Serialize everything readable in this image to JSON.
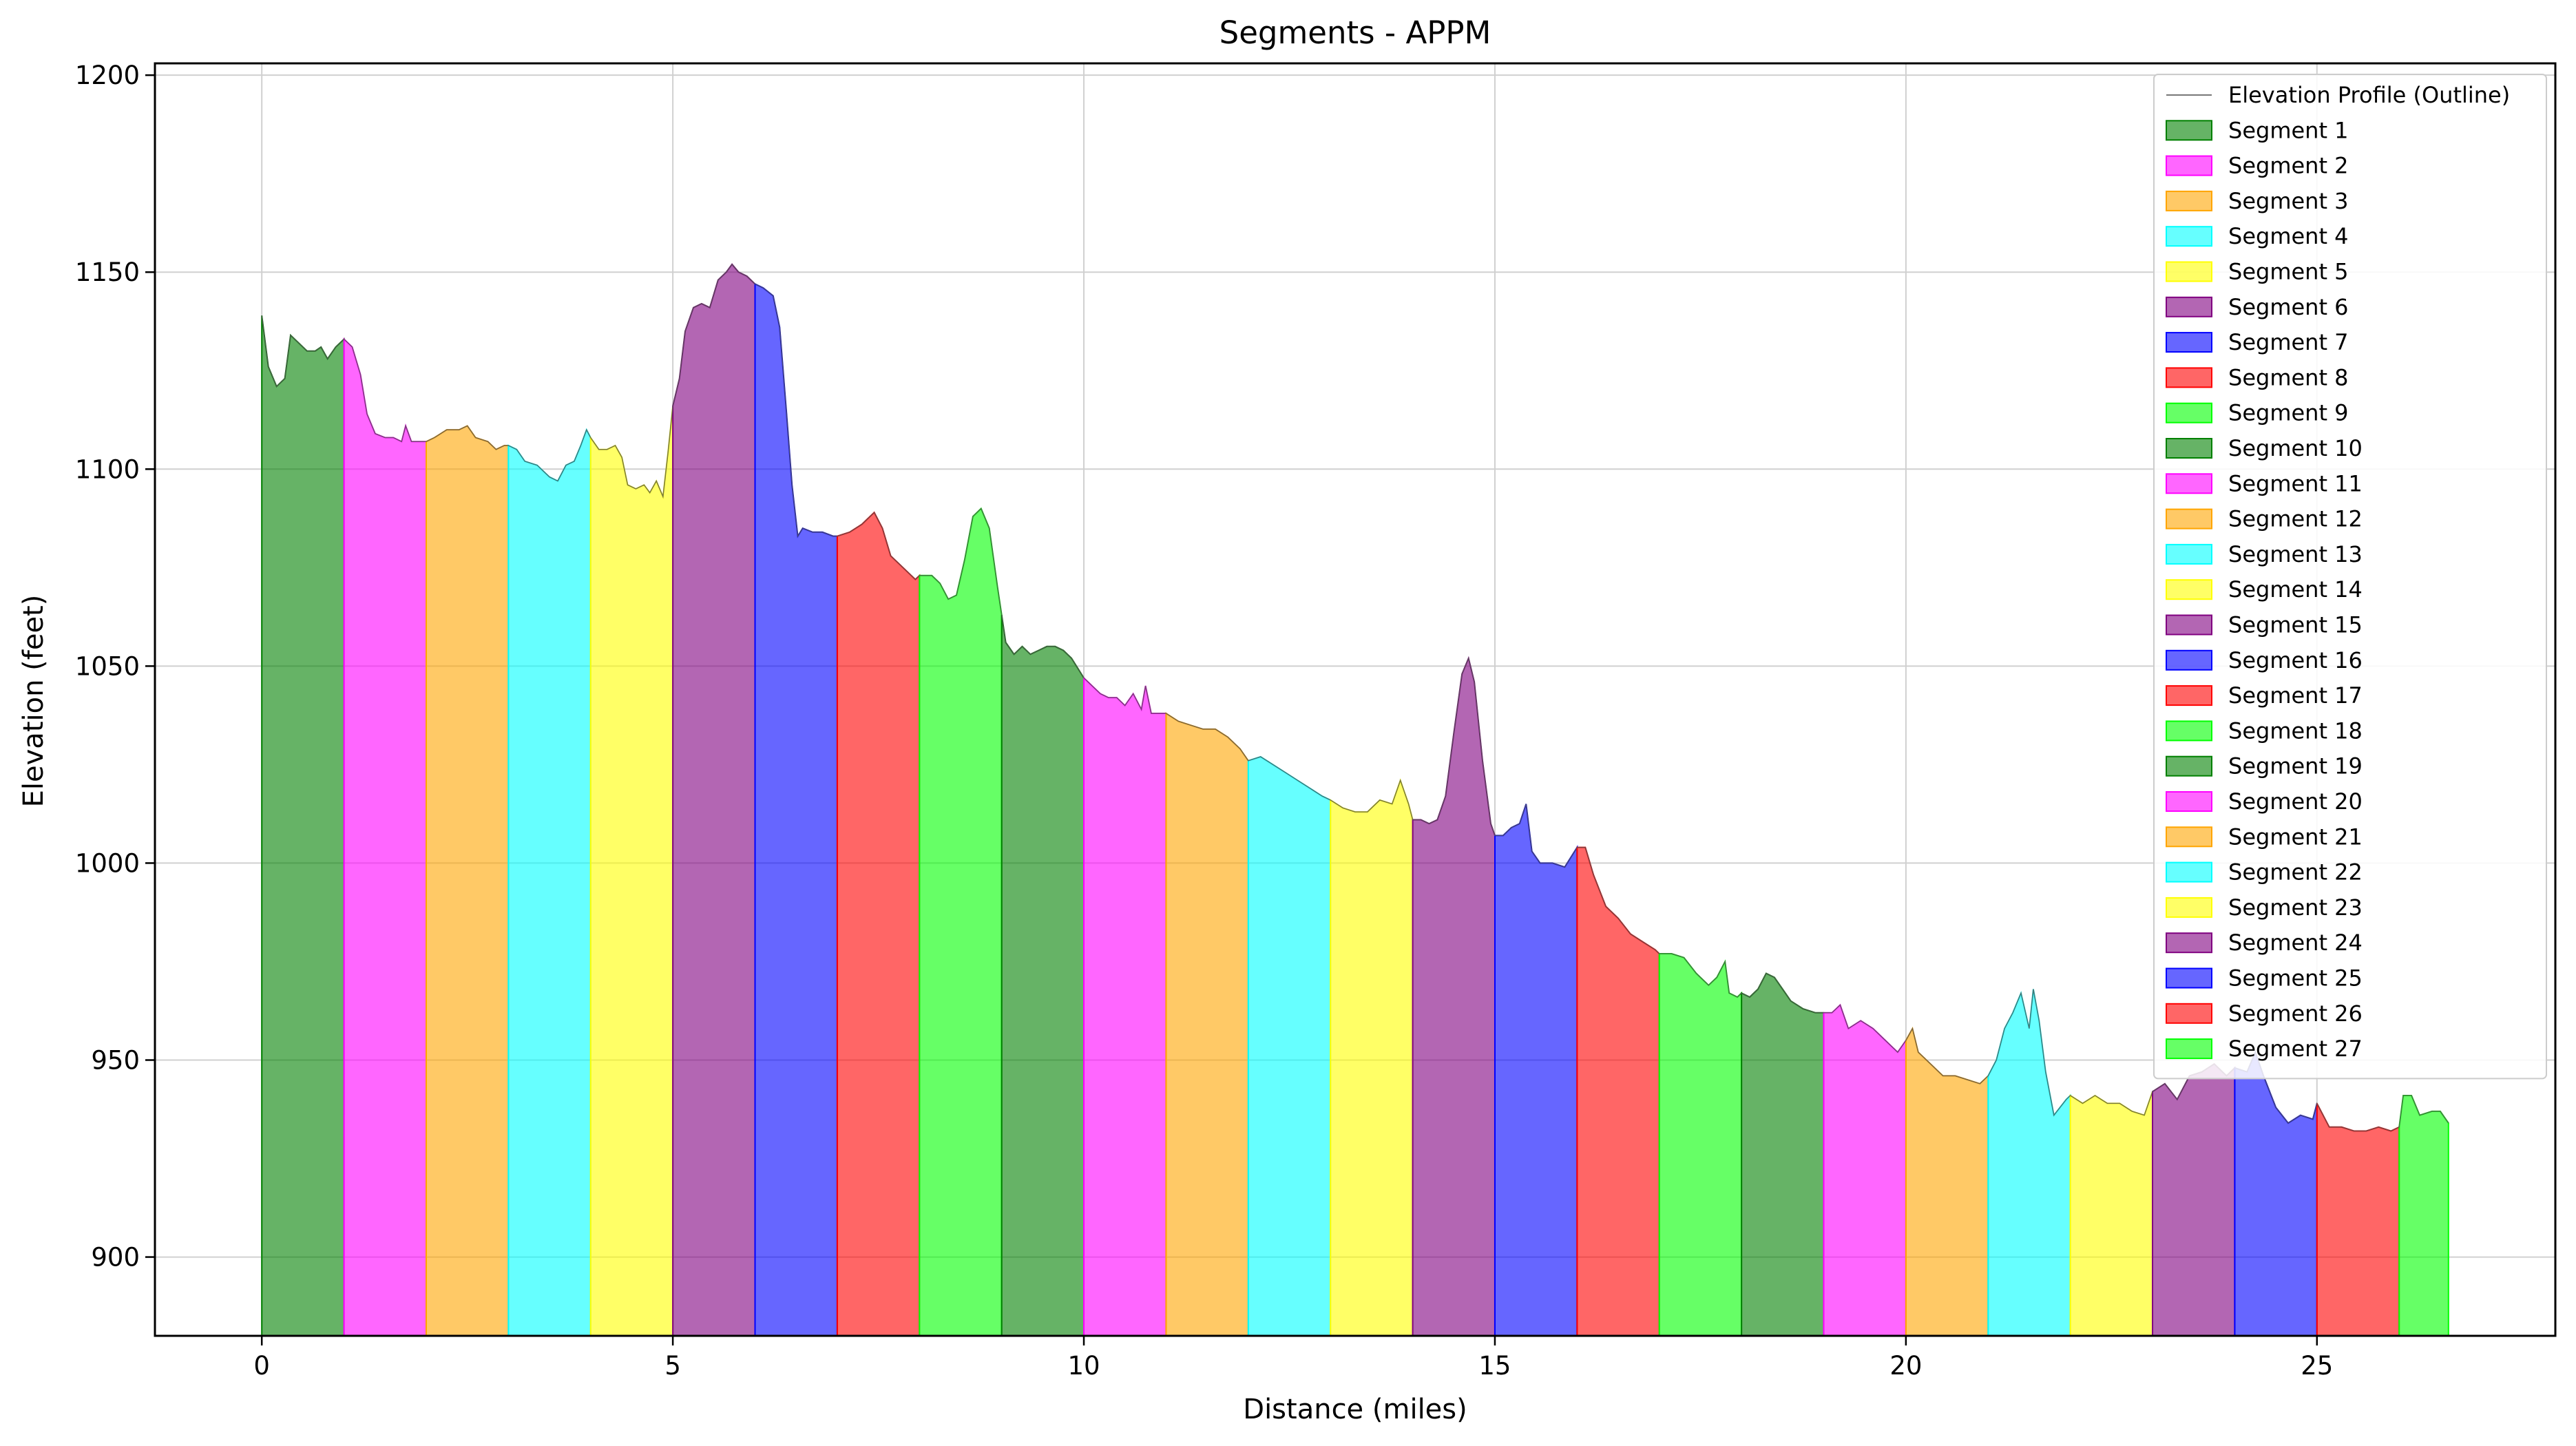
{
  "chart_data": {
    "type": "area",
    "title": "Segments - APPM",
    "xlabel": "Distance (miles)",
    "ylabel": "Elevation (feet)",
    "xlim": [
      -1.3,
      27.9
    ],
    "ylim": [
      880,
      1203
    ],
    "xticks": [
      0,
      5,
      10,
      15,
      20,
      25
    ],
    "yticks": [
      900,
      950,
      1000,
      1050,
      1100,
      1150,
      1200
    ],
    "grid": true,
    "legend_position": "top-right",
    "outline_label": "Elevation Profile (Outline)",
    "profile": [
      [
        0.0,
        1139
      ],
      [
        0.08,
        1126
      ],
      [
        0.18,
        1121
      ],
      [
        0.28,
        1123
      ],
      [
        0.35,
        1134
      ],
      [
        0.45,
        1132
      ],
      [
        0.55,
        1130
      ],
      [
        0.65,
        1130
      ],
      [
        0.72,
        1131
      ],
      [
        0.8,
        1128
      ],
      [
        0.9,
        1131
      ],
      [
        1.0,
        1133
      ],
      [
        1.1,
        1131
      ],
      [
        1.2,
        1124
      ],
      [
        1.28,
        1114
      ],
      [
        1.38,
        1109
      ],
      [
        1.5,
        1108
      ],
      [
        1.6,
        1108
      ],
      [
        1.7,
        1107
      ],
      [
        1.75,
        1111
      ],
      [
        1.82,
        1107
      ],
      [
        1.92,
        1107
      ],
      [
        2.0,
        1107
      ],
      [
        2.1,
        1108
      ],
      [
        2.25,
        1110
      ],
      [
        2.4,
        1110
      ],
      [
        2.5,
        1111
      ],
      [
        2.6,
        1108
      ],
      [
        2.75,
        1107
      ],
      [
        2.85,
        1105
      ],
      [
        2.95,
        1106
      ],
      [
        3.0,
        1106
      ],
      [
        3.1,
        1105
      ],
      [
        3.2,
        1102
      ],
      [
        3.35,
        1101
      ],
      [
        3.5,
        1098
      ],
      [
        3.6,
        1097
      ],
      [
        3.7,
        1101
      ],
      [
        3.8,
        1102
      ],
      [
        3.88,
        1106
      ],
      [
        3.95,
        1110
      ],
      [
        4.0,
        1108
      ],
      [
        4.1,
        1105
      ],
      [
        4.2,
        1105
      ],
      [
        4.3,
        1106
      ],
      [
        4.38,
        1103
      ],
      [
        4.45,
        1096
      ],
      [
        4.55,
        1095
      ],
      [
        4.65,
        1096
      ],
      [
        4.72,
        1094
      ],
      [
        4.8,
        1097
      ],
      [
        4.88,
        1093
      ],
      [
        4.94,
        1104
      ],
      [
        5.0,
        1116
      ],
      [
        5.08,
        1123
      ],
      [
        5.15,
        1135
      ],
      [
        5.25,
        1141
      ],
      [
        5.35,
        1142
      ],
      [
        5.45,
        1141
      ],
      [
        5.55,
        1148
      ],
      [
        5.65,
        1150
      ],
      [
        5.72,
        1152
      ],
      [
        5.8,
        1150
      ],
      [
        5.9,
        1149
      ],
      [
        6.0,
        1147
      ],
      [
        6.1,
        1146
      ],
      [
        6.22,
        1144
      ],
      [
        6.3,
        1136
      ],
      [
        6.38,
        1115
      ],
      [
        6.45,
        1096
      ],
      [
        6.52,
        1083
      ],
      [
        6.58,
        1085
      ],
      [
        6.7,
        1084
      ],
      [
        6.82,
        1084
      ],
      [
        6.95,
        1083
      ],
      [
        7.0,
        1083
      ],
      [
        7.15,
        1084
      ],
      [
        7.3,
        1086
      ],
      [
        7.45,
        1089
      ],
      [
        7.55,
        1085
      ],
      [
        7.65,
        1078
      ],
      [
        7.8,
        1075
      ],
      [
        7.95,
        1072
      ],
      [
        8.0,
        1073
      ],
      [
        8.15,
        1073
      ],
      [
        8.25,
        1071
      ],
      [
        8.35,
        1067
      ],
      [
        8.45,
        1068
      ],
      [
        8.55,
        1077
      ],
      [
        8.65,
        1088
      ],
      [
        8.75,
        1090
      ],
      [
        8.85,
        1085
      ],
      [
        8.95,
        1070
      ],
      [
        9.05,
        1056
      ],
      [
        9.15,
        1053
      ],
      [
        9.25,
        1055
      ],
      [
        9.35,
        1053
      ],
      [
        9.45,
        1054
      ],
      [
        9.55,
        1055
      ],
      [
        9.65,
        1055
      ],
      [
        9.75,
        1054
      ],
      [
        9.85,
        1052
      ],
      [
        10.0,
        1047
      ],
      [
        10.1,
        1045
      ],
      [
        10.2,
        1043
      ],
      [
        10.3,
        1042
      ],
      [
        10.4,
        1042
      ],
      [
        10.5,
        1040
      ],
      [
        10.6,
        1043
      ],
      [
        10.7,
        1039
      ],
      [
        10.75,
        1045
      ],
      [
        10.82,
        1038
      ],
      [
        10.92,
        1038
      ],
      [
        11.0,
        1038
      ],
      [
        11.15,
        1036
      ],
      [
        11.3,
        1035
      ],
      [
        11.45,
        1034
      ],
      [
        11.6,
        1034
      ],
      [
        11.75,
        1032
      ],
      [
        11.9,
        1029
      ],
      [
        12.0,
        1026
      ],
      [
        12.15,
        1027
      ],
      [
        12.3,
        1025
      ],
      [
        12.45,
        1023
      ],
      [
        12.6,
        1021
      ],
      [
        12.75,
        1019
      ],
      [
        12.9,
        1017
      ],
      [
        13.0,
        1016
      ],
      [
        13.15,
        1014
      ],
      [
        13.3,
        1013
      ],
      [
        13.45,
        1013
      ],
      [
        13.6,
        1016
      ],
      [
        13.75,
        1015
      ],
      [
        13.85,
        1021
      ],
      [
        13.95,
        1015
      ],
      [
        14.0,
        1011
      ],
      [
        14.1,
        1011
      ],
      [
        14.2,
        1010
      ],
      [
        14.3,
        1011
      ],
      [
        14.4,
        1017
      ],
      [
        14.5,
        1033
      ],
      [
        14.6,
        1048
      ],
      [
        14.68,
        1052
      ],
      [
        14.75,
        1046
      ],
      [
        14.85,
        1026
      ],
      [
        14.95,
        1010
      ],
      [
        15.0,
        1007
      ],
      [
        15.1,
        1007
      ],
      [
        15.2,
        1009
      ],
      [
        15.3,
        1010
      ],
      [
        15.38,
        1015
      ],
      [
        15.45,
        1003
      ],
      [
        15.55,
        1000
      ],
      [
        15.7,
        1000
      ],
      [
        15.85,
        999
      ],
      [
        16.0,
        1004
      ],
      [
        16.1,
        1004
      ],
      [
        16.2,
        997
      ],
      [
        16.35,
        989
      ],
      [
        16.5,
        986
      ],
      [
        16.65,
        982
      ],
      [
        16.8,
        980
      ],
      [
        16.95,
        978
      ],
      [
        17.0,
        977
      ],
      [
        17.15,
        977
      ],
      [
        17.3,
        976
      ],
      [
        17.45,
        972
      ],
      [
        17.6,
        969
      ],
      [
        17.7,
        971
      ],
      [
        17.8,
        975
      ],
      [
        17.85,
        967
      ],
      [
        17.95,
        966
      ],
      [
        18.0,
        967
      ],
      [
        18.1,
        966
      ],
      [
        18.2,
        968
      ],
      [
        18.3,
        972
      ],
      [
        18.4,
        971
      ],
      [
        18.5,
        968
      ],
      [
        18.6,
        965
      ],
      [
        18.75,
        963
      ],
      [
        18.9,
        962
      ],
      [
        19.0,
        962
      ],
      [
        19.1,
        962
      ],
      [
        19.2,
        964
      ],
      [
        19.3,
        958
      ],
      [
        19.45,
        960
      ],
      [
        19.6,
        958
      ],
      [
        19.75,
        955
      ],
      [
        19.9,
        952
      ],
      [
        20.0,
        955
      ],
      [
        20.08,
        958
      ],
      [
        20.15,
        952
      ],
      [
        20.3,
        949
      ],
      [
        20.45,
        946
      ],
      [
        20.6,
        946
      ],
      [
        20.75,
        945
      ],
      [
        20.9,
        944
      ],
      [
        21.0,
        946
      ],
      [
        21.1,
        950
      ],
      [
        21.2,
        958
      ],
      [
        21.3,
        962
      ],
      [
        21.4,
        967
      ],
      [
        21.5,
        958
      ],
      [
        21.55,
        968
      ],
      [
        21.62,
        960
      ],
      [
        21.7,
        947
      ],
      [
        21.8,
        936
      ],
      [
        21.95,
        940
      ],
      [
        22.0,
        941
      ],
      [
        22.15,
        939
      ],
      [
        22.3,
        941
      ],
      [
        22.45,
        939
      ],
      [
        22.6,
        939
      ],
      [
        22.75,
        937
      ],
      [
        22.9,
        936
      ],
      [
        23.0,
        942
      ],
      [
        23.15,
        944
      ],
      [
        23.3,
        940
      ],
      [
        23.45,
        946
      ],
      [
        23.6,
        947
      ],
      [
        23.75,
        949
      ],
      [
        23.9,
        946
      ],
      [
        24.0,
        948
      ],
      [
        24.15,
        947
      ],
      [
        24.25,
        952
      ],
      [
        24.35,
        946
      ],
      [
        24.5,
        938
      ],
      [
        24.65,
        934
      ],
      [
        24.8,
        936
      ],
      [
        24.95,
        935
      ],
      [
        25.0,
        939
      ],
      [
        25.15,
        933
      ],
      [
        25.3,
        933
      ],
      [
        25.45,
        932
      ],
      [
        25.6,
        932
      ],
      [
        25.75,
        933
      ],
      [
        25.9,
        932
      ],
      [
        26.0,
        933
      ],
      [
        26.05,
        941
      ],
      [
        26.15,
        941
      ],
      [
        26.25,
        936
      ],
      [
        26.4,
        937
      ],
      [
        26.5,
        937
      ],
      [
        26.6,
        934
      ]
    ],
    "series": [
      {
        "name": "Segment 1",
        "start": 0,
        "end": 1,
        "color": "#008000"
      },
      {
        "name": "Segment 2",
        "start": 1,
        "end": 2,
        "color": "#ff00ff"
      },
      {
        "name": "Segment 3",
        "start": 2,
        "end": 3,
        "color": "#ffa500"
      },
      {
        "name": "Segment 4",
        "start": 3,
        "end": 4,
        "color": "#00ffff"
      },
      {
        "name": "Segment 5",
        "start": 4,
        "end": 5,
        "color": "#ffff00"
      },
      {
        "name": "Segment 6",
        "start": 5,
        "end": 6,
        "color": "#800080"
      },
      {
        "name": "Segment 7",
        "start": 6,
        "end": 7,
        "color": "#0000ff"
      },
      {
        "name": "Segment 8",
        "start": 7,
        "end": 8,
        "color": "#ff0000"
      },
      {
        "name": "Segment 9",
        "start": 8,
        "end": 9,
        "color": "#00ff00"
      },
      {
        "name": "Segment 10",
        "start": 9,
        "end": 10,
        "color": "#008000"
      },
      {
        "name": "Segment 11",
        "start": 10,
        "end": 11,
        "color": "#ff00ff"
      },
      {
        "name": "Segment 12",
        "start": 11,
        "end": 12,
        "color": "#ffa500"
      },
      {
        "name": "Segment 13",
        "start": 12,
        "end": 13,
        "color": "#00ffff"
      },
      {
        "name": "Segment 14",
        "start": 13,
        "end": 14,
        "color": "#ffff00"
      },
      {
        "name": "Segment 15",
        "start": 14,
        "end": 15,
        "color": "#800080"
      },
      {
        "name": "Segment 16",
        "start": 15,
        "end": 16,
        "color": "#0000ff"
      },
      {
        "name": "Segment 17",
        "start": 16,
        "end": 17,
        "color": "#ff0000"
      },
      {
        "name": "Segment 18",
        "start": 17,
        "end": 18,
        "color": "#00ff00"
      },
      {
        "name": "Segment 19",
        "start": 18,
        "end": 19,
        "color": "#008000"
      },
      {
        "name": "Segment 20",
        "start": 19,
        "end": 20,
        "color": "#ff00ff"
      },
      {
        "name": "Segment 21",
        "start": 20,
        "end": 21,
        "color": "#ffa500"
      },
      {
        "name": "Segment 22",
        "start": 21,
        "end": 22,
        "color": "#00ffff"
      },
      {
        "name": "Segment 23",
        "start": 22,
        "end": 23,
        "color": "#ffff00"
      },
      {
        "name": "Segment 24",
        "start": 23,
        "end": 24,
        "color": "#800080"
      },
      {
        "name": "Segment 25",
        "start": 24,
        "end": 25,
        "color": "#0000ff"
      },
      {
        "name": "Segment 26",
        "start": 25,
        "end": 26,
        "color": "#ff0000"
      },
      {
        "name": "Segment 27",
        "start": 26,
        "end": 26.6,
        "color": "#00ff00"
      }
    ]
  }
}
